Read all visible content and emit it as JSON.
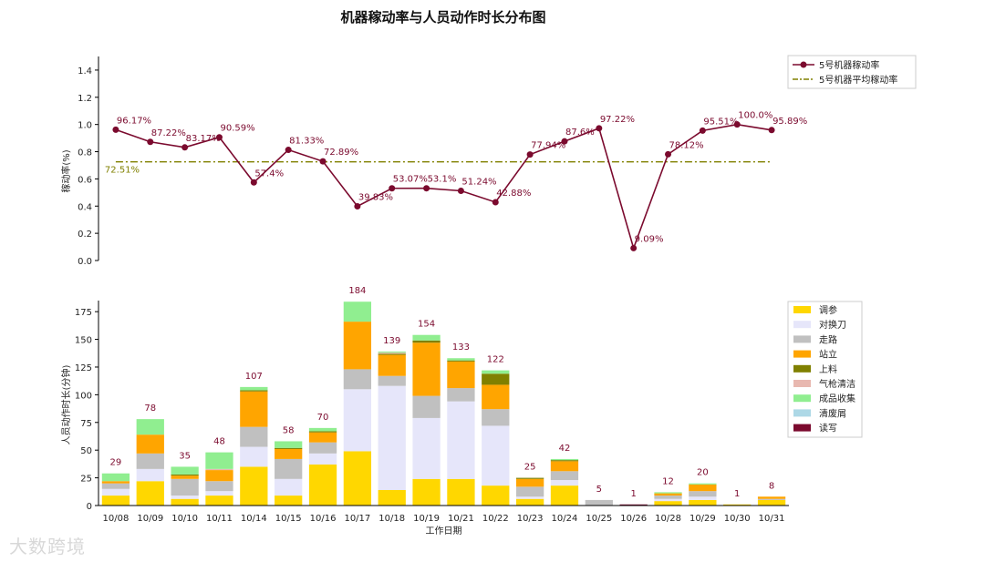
{
  "title": "机器稼动率与人员动作时长分布图",
  "watermark": "大数跨境",
  "chart_data": [
    {
      "type": "line",
      "ylabel": "稼动率(%)",
      "ylim": [
        0,
        1.5
      ],
      "yticks": [
        "0.0",
        "0.2",
        "0.4",
        "0.6",
        "0.8",
        "1.0",
        "1.2",
        "1.4"
      ],
      "x": [
        "10/08",
        "10/09",
        "10/10",
        "10/11",
        "10/14",
        "10/15",
        "10/16",
        "10/17",
        "10/18",
        "10/19",
        "10/21",
        "10/22",
        "10/23",
        "10/24",
        "10/25",
        "10/26",
        "10/28",
        "10/29",
        "10/30",
        "10/31"
      ],
      "series": [
        {
          "name": "5号机器稼动率",
          "color": "#7b0a2e",
          "values": [
            0.9617,
            0.8722,
            0.8317,
            0.9059,
            0.574,
            0.8133,
            0.7289,
            0.3983,
            0.5307,
            0.531,
            0.5124,
            0.4288,
            0.7794,
            0.876,
            0.9722,
            0.0909,
            0.7812,
            0.9551,
            1.0,
            0.9589
          ],
          "labels": [
            "96.17%",
            "87.22%",
            "83.17%",
            "90.59%",
            "57.4%",
            "81.33%",
            "72.89%",
            "39.83%",
            "53.07%",
            "53.1%",
            "51.24%",
            "42.88%",
            "77.94%",
            "87.6%",
            "97.22%",
            "9.09%",
            "78.12%",
            "95.51%",
            "100.0%",
            "95.89%"
          ]
        }
      ],
      "average": {
        "name": "5号机器平均稼动率",
        "value": 0.7251,
        "label": "72.51%",
        "color": "#808000"
      },
      "legend": "top-right"
    },
    {
      "type": "bar",
      "stacked": true,
      "xlabel": "工作日期",
      "ylabel": "人员动作时长(分钟)",
      "ylim": [
        0,
        185
      ],
      "yticks": [
        "0",
        "25",
        "50",
        "75",
        "100",
        "125",
        "150",
        "175"
      ],
      "categories": [
        "10/08",
        "10/09",
        "10/10",
        "10/11",
        "10/14",
        "10/15",
        "10/16",
        "10/17",
        "10/18",
        "10/19",
        "10/21",
        "10/22",
        "10/23",
        "10/24",
        "10/25",
        "10/26",
        "10/28",
        "10/29",
        "10/30",
        "10/31"
      ],
      "totals": [
        29,
        78,
        35,
        48,
        107,
        58,
        70,
        184,
        139,
        154,
        133,
        122,
        25,
        42,
        5,
        1,
        12,
        20,
        1,
        8
      ],
      "series": [
        {
          "name": "调参",
          "color": "#ffd700",
          "values": [
            9,
            22,
            6,
            9,
            35,
            9,
            37,
            49,
            14,
            24,
            24,
            18,
            6,
            18,
            0,
            0,
            4,
            5,
            1,
            5
          ]
        },
        {
          "name": "对换刀",
          "color": "#e6e6fa",
          "values": [
            6,
            11,
            3,
            4,
            18,
            15,
            10,
            56,
            94,
            55,
            70,
            54,
            2,
            5,
            0,
            0,
            2,
            3,
            0,
            0
          ]
        },
        {
          "name": "走路",
          "color": "#c0c0c0",
          "values": [
            5,
            14,
            15,
            9,
            18,
            18,
            10,
            18,
            9,
            20,
            12,
            15,
            9,
            8,
            5,
            0,
            3,
            5,
            0,
            1
          ]
        },
        {
          "name": "站立",
          "color": "#ffa500",
          "values": [
            2,
            17,
            3,
            10,
            32,
            9,
            9,
            43,
            19,
            48,
            24,
            22,
            7,
            9,
            0,
            0,
            2,
            6,
            0,
            2
          ]
        },
        {
          "name": "上料",
          "color": "#808000",
          "values": [
            0,
            0,
            1,
            0,
            1,
            1,
            1,
            0,
            1,
            2,
            1,
            10,
            1,
            1,
            0,
            0,
            0,
            0,
            0,
            0
          ]
        },
        {
          "name": "气枪清洁",
          "color": "#e8b8b0",
          "values": [
            0,
            0,
            0,
            1,
            0,
            0,
            0,
            0,
            1,
            0,
            0,
            0,
            0,
            0,
            0,
            0,
            0,
            0,
            0,
            0
          ]
        },
        {
          "name": "成品收集",
          "color": "#90ee90",
          "values": [
            7,
            14,
            7,
            15,
            3,
            6,
            3,
            18,
            1,
            5,
            2,
            3,
            0,
            1,
            0,
            0,
            1,
            1,
            0,
            0
          ]
        },
        {
          "name": "清废屑",
          "color": "#add8e6",
          "values": [
            0,
            0,
            0,
            0,
            0,
            0,
            0,
            0,
            0,
            0,
            0,
            0,
            0,
            0,
            0,
            0,
            0,
            0,
            0,
            0
          ]
        },
        {
          "name": "读写",
          "color": "#7b0a2e",
          "values": [
            0,
            0,
            0,
            0,
            0,
            0,
            0,
            0,
            0,
            0,
            0,
            0,
            0,
            0,
            0,
            1,
            0,
            0,
            0,
            0
          ]
        }
      ],
      "legend": "right"
    }
  ]
}
